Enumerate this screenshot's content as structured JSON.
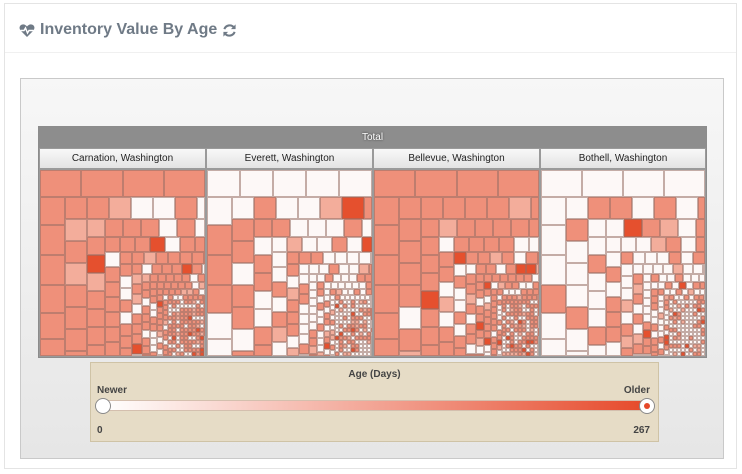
{
  "header": {
    "title": "Inventory Value By Age",
    "icon": "heartbeat-icon",
    "refresh_icon": "refresh-icon"
  },
  "treemap": {
    "root_label": "Total",
    "regions": [
      {
        "label": "Carnation, Washington"
      },
      {
        "label": "Everett, Washington"
      },
      {
        "label": "Bellevue, Washington"
      },
      {
        "label": "Bothell, Washington"
      }
    ]
  },
  "legend": {
    "title": "Age (Days)",
    "min_label": "Newer",
    "max_label": "Older",
    "min_value": "0",
    "max_value": "267",
    "color_min": "#ffffff",
    "color_max": "#e6492a"
  },
  "colors": {
    "light": "#fdf8f7",
    "medium": "#ef907a",
    "pale": "#f3ad9b",
    "dark": "#e5502e"
  }
}
